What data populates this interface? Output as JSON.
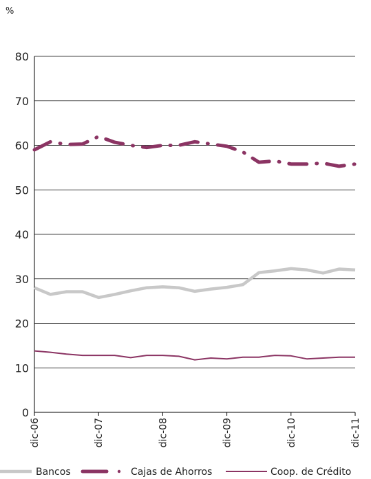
{
  "chart_data": {
    "type": "line",
    "ylabel": "%",
    "ylim": [
      0,
      80
    ],
    "yticks": [
      0,
      10,
      20,
      30,
      40,
      50,
      60,
      70,
      80
    ],
    "x": [
      0,
      1,
      2,
      3,
      4,
      5,
      6,
      7,
      8,
      9,
      10,
      11,
      12,
      13,
      14,
      15,
      16,
      17,
      18,
      19,
      20
    ],
    "xticks": [
      {
        "index": 0,
        "label": "dic-06"
      },
      {
        "index": 4,
        "label": "dic-07"
      },
      {
        "index": 8,
        "label": "dic-08"
      },
      {
        "index": 12,
        "label": "dic-09"
      },
      {
        "index": 16,
        "label": "dic-10"
      },
      {
        "index": 20,
        "label": "dic-11"
      }
    ],
    "grid": true,
    "legend_position": "bottom",
    "series": [
      {
        "name": "Bancos",
        "color": "#c8c8c8",
        "style": "solid-thick",
        "values": [
          28.0,
          26.5,
          27.1,
          27.1,
          25.8,
          26.5,
          27.3,
          28.0,
          28.2,
          28.0,
          27.2,
          27.7,
          28.1,
          28.7,
          31.4,
          31.8,
          32.3,
          32.0,
          31.3,
          32.2,
          32.0
        ]
      },
      {
        "name": "Cajas de Ahorros",
        "color": "#8b3463",
        "style": "dash-dot",
        "values": [
          59.0,
          60.8,
          60.2,
          60.3,
          62.0,
          60.7,
          60.0,
          59.5,
          60.0,
          60.0,
          60.8,
          60.3,
          59.8,
          58.5,
          56.2,
          56.5,
          55.8,
          55.8,
          56.0,
          55.3,
          55.8
        ]
      },
      {
        "name": "Coop. de Crédito",
        "color": "#8b3463",
        "style": "solid-thin",
        "values": [
          13.8,
          13.5,
          13.1,
          12.8,
          12.8,
          12.8,
          12.3,
          12.8,
          12.8,
          12.6,
          11.8,
          12.2,
          12.0,
          12.4,
          12.4,
          12.8,
          12.7,
          12.0,
          12.2,
          12.4,
          12.4
        ]
      }
    ]
  }
}
